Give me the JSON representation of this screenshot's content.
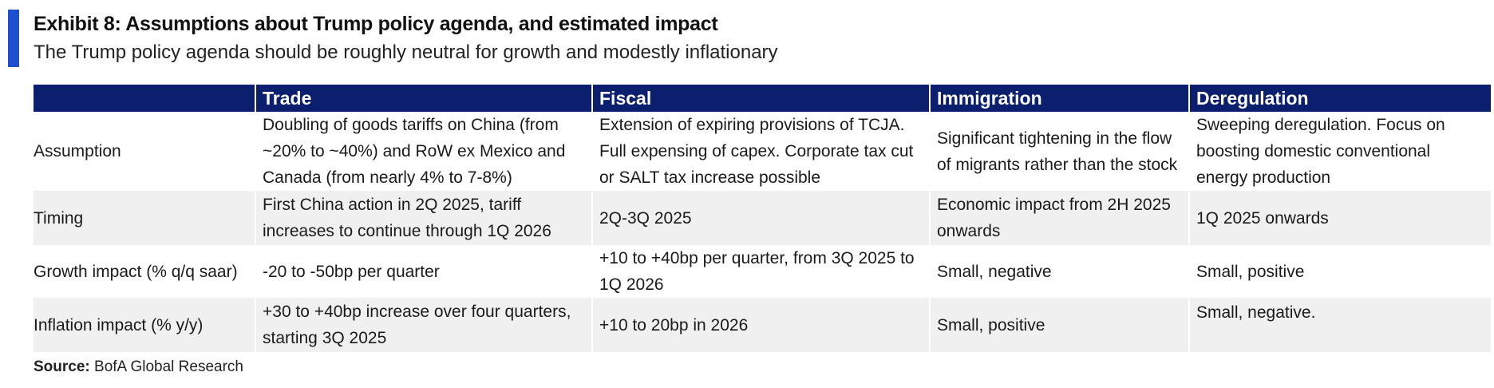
{
  "exhibit": {
    "title": "Exhibit 8: Assumptions about Trump policy agenda, and estimated impact",
    "subtitle": "The Trump policy agenda should be roughly neutral for growth and modestly inflationary"
  },
  "table": {
    "headers": [
      "",
      "Trade",
      "Fiscal",
      "Immigration",
      "Deregulation"
    ],
    "rows": [
      {
        "label": "Assumption",
        "cells": [
          "Doubling of goods tariffs on China (from ~20% to ~40%) and RoW ex Mexico and Canada (from nearly 4% to 7-8%)",
          "Extension of expiring provisions of TCJA. Full expensing of capex. Corporate tax cut or SALT tax increase possible",
          "Significant tightening in the flow of migrants rather than the stock",
          "Sweeping deregulation. Focus on boosting domestic conventional energy production"
        ]
      },
      {
        "label": "Timing",
        "cells": [
          "First China action in 2Q 2025, tariff increases to continue through 1Q 2026",
          "2Q-3Q 2025",
          "Economic impact from 2H 2025 onwards",
          "1Q 2025 onwards"
        ]
      },
      {
        "label": "Growth impact (% q/q saar)",
        "cells": [
          "-20 to -50bp per quarter",
          "+10 to +40bp per quarter, from 3Q 2025 to 1Q 2026",
          "Small, negative",
          "Small, positive"
        ]
      },
      {
        "label": "Inflation impact (% y/y)",
        "cells": [
          "+30 to +40bp increase over four quarters, starting 3Q 2025",
          "+10 to 20bp in 2026",
          "Small, positive",
          "Small, negative."
        ]
      }
    ]
  },
  "source": {
    "label": "Source:",
    "text": "BofA Global Research"
  },
  "colors": {
    "accent_bar": "#1f4fd1",
    "header_background": "#0b1f6e",
    "shaded_row": "#f0f0f0"
  }
}
